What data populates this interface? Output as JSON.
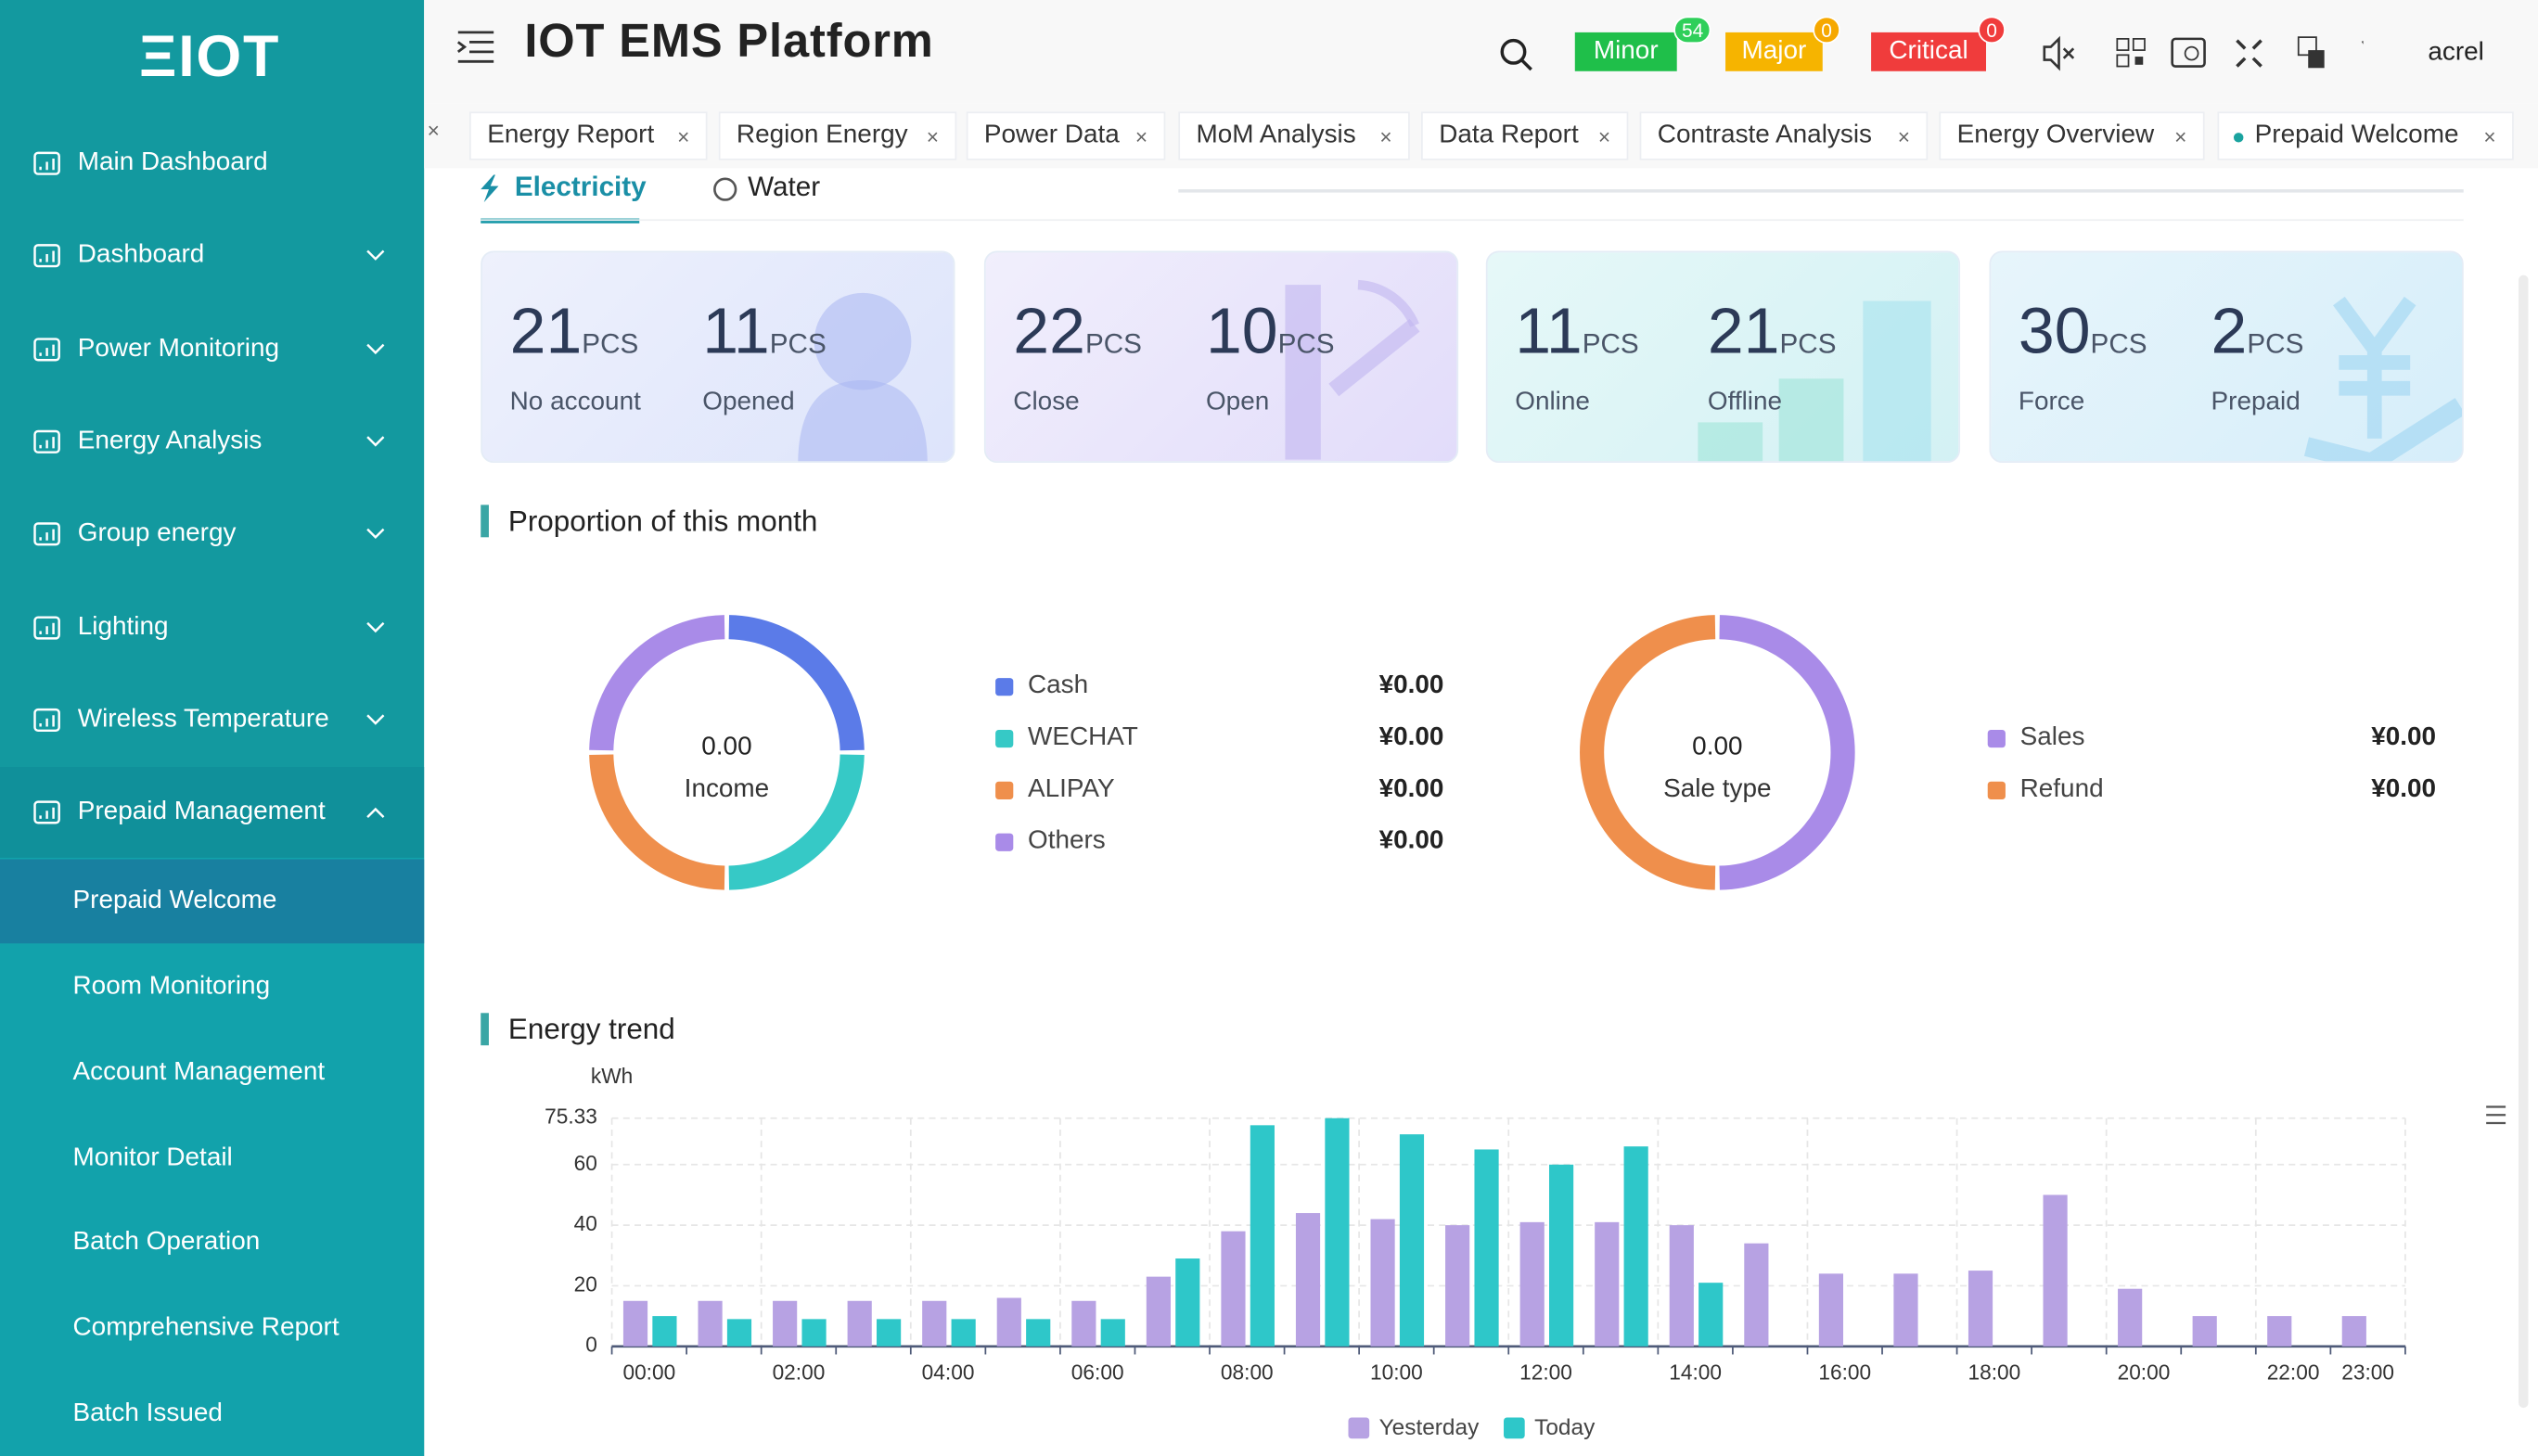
{
  "sidebar": {
    "logo": "ΞIOT",
    "menu": [
      "Main Dashboard",
      "Dashboard",
      "Power Monitoring",
      "Energy Analysis",
      "Group energy",
      "Lighting",
      "Wireless Temperature",
      "Prepaid Management"
    ],
    "submenu": [
      "Prepaid Welcome",
      "Room Monitoring",
      "Account Management",
      "Monitor Detail",
      "Batch Operation",
      "Comprehensive Report",
      "Batch Issued"
    ]
  },
  "header": {
    "title": "IOT EMS Platform",
    "alarms": [
      {
        "label": "Minor",
        "count": 54
      },
      {
        "label": "Major",
        "count": 0
      },
      {
        "label": "Critical",
        "count": 0
      }
    ],
    "user": "acrel"
  },
  "tabs": [
    "Energy Report",
    "Region Energy",
    "Power Data",
    "MoM Analysis",
    "Data Report",
    "Contraste Analysis",
    "Energy Overview",
    "Prepaid Welcome"
  ],
  "energy_tabs": [
    "Electricity",
    "Water"
  ],
  "cards": [
    {
      "stats": [
        {
          "value": 21,
          "unit": "PCS",
          "label": "No account"
        },
        {
          "value": 11,
          "unit": "PCS",
          "label": "Opened"
        }
      ]
    },
    {
      "stats": [
        {
          "value": 22,
          "unit": "PCS",
          "label": "Close"
        },
        {
          "value": 10,
          "unit": "PCS",
          "label": "Open"
        }
      ]
    },
    {
      "stats": [
        {
          "value": 11,
          "unit": "PCS",
          "label": "Online"
        },
        {
          "value": 21,
          "unit": "PCS",
          "label": "Offline"
        }
      ]
    },
    {
      "stats": [
        {
          "value": 30,
          "unit": "PCS",
          "label": "Force"
        },
        {
          "value": 2,
          "unit": "PCS",
          "label": "Prepaid"
        }
      ]
    }
  ],
  "proportion": {
    "title": "Proportion of this month",
    "income": {
      "center_value": "0.00",
      "center_label": "Income",
      "items": [
        {
          "name": "Cash",
          "value": "¥0.00"
        },
        {
          "name": "WECHAT",
          "value": "¥0.00"
        },
        {
          "name": "ALIPAY",
          "value": "¥0.00"
        },
        {
          "name": "Others",
          "value": "¥0.00"
        }
      ]
    },
    "sales": {
      "center_value": "0.00",
      "center_label": "Sale type",
      "items": [
        {
          "name": "Sales",
          "value": "¥0.00"
        },
        {
          "name": "Refund",
          "value": "¥0.00"
        }
      ]
    }
  },
  "chart_data": {
    "type": "bar",
    "title": "Energy trend",
    "y_label": "kWh",
    "categories": [
      "00:00",
      null,
      "02:00",
      null,
      "04:00",
      null,
      "06:00",
      null,
      "08:00",
      null,
      "10:00",
      null,
      "12:00",
      null,
      "14:00",
      null,
      "16:00",
      null,
      "18:00",
      null,
      "20:00",
      null,
      "22:00",
      "23:00"
    ],
    "series": [
      {
        "name": "Yesterday",
        "color": "#b7a2e3",
        "values": [
          15,
          15,
          15,
          15,
          15,
          16,
          15,
          23,
          38,
          44,
          42,
          40,
          41,
          41,
          40,
          34,
          24,
          24,
          25,
          50,
          19,
          10,
          10,
          10
        ]
      },
      {
        "name": "Today",
        "color": "#2ec7c9",
        "values": [
          10,
          9,
          9,
          9,
          9,
          9,
          9,
          29,
          73,
          75.33,
          70,
          65,
          60,
          66,
          21,
          null,
          null,
          null,
          null,
          null,
          null,
          null,
          null,
          null
        ]
      }
    ],
    "ylim": [
      0,
      75.33
    ],
    "yticks": [
      0,
      20,
      40,
      60,
      75.33
    ],
    "grid": true
  }
}
